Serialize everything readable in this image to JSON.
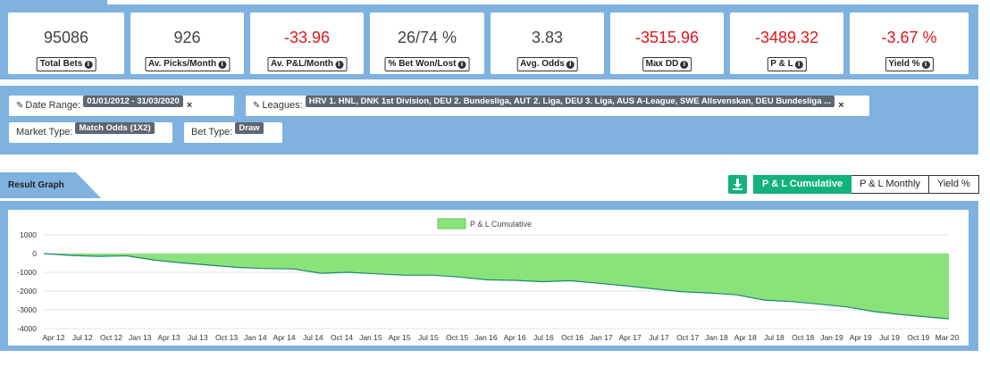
{
  "stats": [
    {
      "value": "95086",
      "label": "Total Bets",
      "negative": false
    },
    {
      "value": "926",
      "label": "Av. Picks/Month",
      "negative": false
    },
    {
      "value": "-33.96",
      "label": "Av. P&L/Month",
      "negative": true
    },
    {
      "value": "26/74 %",
      "label": "% Bet Won/Lost",
      "negative": false
    },
    {
      "value": "3.83",
      "label": "Avg. Odds",
      "negative": false
    },
    {
      "value": "-3515.96",
      "label": "Max DD",
      "negative": true
    },
    {
      "value": "-3489.32",
      "label": "P & L",
      "negative": true
    },
    {
      "value": "-3.67 %",
      "label": "Yield %",
      "negative": true
    }
  ],
  "filters": {
    "date_range": {
      "label": "Date Range:",
      "value": "01/01/2012 - 31/03/2020",
      "close": "×"
    },
    "leagues": {
      "label": "Leagues:",
      "value": "HRV 1. HNL, DNK 1st Division, DEU 2. Bundesliga, AUT 2. Liga, DEU 3. Liga, AUS A-League, SWE Allsvenskan, DEU Bundesliga ...",
      "close": "×"
    },
    "market_type": {
      "label": "Market Type:",
      "value": "Match Odds (1X2)"
    },
    "bet_type": {
      "label": "Bet Type:",
      "value": "Draw"
    }
  },
  "result_graph": {
    "title": "Result Graph",
    "toggles": [
      "P & L Cumulative",
      "P & L Monthly",
      "Yield %"
    ],
    "active_toggle": 0
  },
  "colors": {
    "band": "#7fb2de",
    "accent_green": "#13b27a",
    "negative_red": "#e0161b",
    "area_fill": "#8ae27a",
    "line": "#1a8a6e"
  },
  "icons": {
    "info": "info-circle-icon",
    "pencil": "pencil-icon",
    "download": "download-icon",
    "close": "close-icon"
  },
  "chart_data": {
    "type": "area",
    "legend": [
      "P & L Cumulative"
    ],
    "legend_position": "top-center",
    "ylim": [
      -4000,
      1000
    ],
    "yticks": [
      1000,
      0,
      -1000,
      -2000,
      -3000,
      -4000
    ],
    "xticks": [
      "Apr 12",
      "Jul 12",
      "Oct 12",
      "Jan 13",
      "Apr 13",
      "Jul 13",
      "Oct 13",
      "Jan 14",
      "Apr 14",
      "Jul 14",
      "Oct 14",
      "Jan 15",
      "Apr 15",
      "Jul 15",
      "Oct 15",
      "Jan 16",
      "Apr 16",
      "Jul 16",
      "Oct 16",
      "Jan 17",
      "Apr 17",
      "Jul 17",
      "Oct 17",
      "Jan 18",
      "Apr 18",
      "Jul 18",
      "Oct 18",
      "Jan 19",
      "Apr 19",
      "Jul 19",
      "Oct 19",
      "Mar 20"
    ],
    "grid": true,
    "series": [
      {
        "name": "P & L Cumulative",
        "x": [
          "2012-01",
          "2012-04",
          "2012-07",
          "2012-10",
          "2013-01",
          "2013-04",
          "2013-07",
          "2013-10",
          "2014-01",
          "2014-04",
          "2014-07",
          "2014-10",
          "2015-01",
          "2015-04",
          "2015-07",
          "2015-10",
          "2016-01",
          "2016-04",
          "2016-07",
          "2016-10",
          "2017-01",
          "2017-04",
          "2017-07",
          "2017-10",
          "2018-01",
          "2018-04",
          "2018-07",
          "2018-10",
          "2019-01",
          "2019-04",
          "2019-07",
          "2019-10",
          "2020-03"
        ],
        "values": [
          0,
          -100,
          -150,
          -120,
          -350,
          -500,
          -620,
          -740,
          -800,
          -820,
          -1050,
          -1000,
          -1080,
          -1150,
          -1150,
          -1250,
          -1400,
          -1430,
          -1500,
          -1450,
          -1580,
          -1720,
          -1880,
          -2030,
          -2100,
          -2200,
          -2480,
          -2560,
          -2700,
          -2850,
          -3100,
          -3260,
          -3480
        ]
      }
    ]
  }
}
